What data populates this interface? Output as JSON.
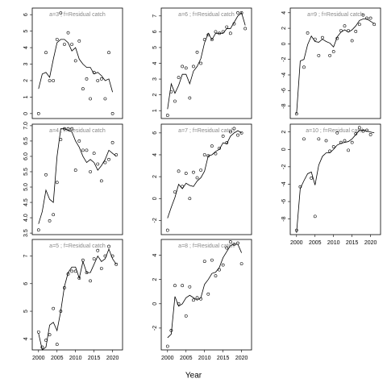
{
  "chart_data": [
    {
      "type": "scatter",
      "title": "a=3 ; f=Residual catch",
      "xlim": [
        1998.3,
        2022.7
      ],
      "ylim": [
        -0.3,
        6.4
      ],
      "yticks": [
        0,
        1,
        2,
        3,
        4,
        5,
        6
      ],
      "x": [
        2000,
        2001,
        2002,
        2003,
        2004,
        2005,
        2006,
        2007,
        2008,
        2009,
        2010,
        2011,
        2012,
        2013,
        2014,
        2015,
        2016,
        2017,
        2018,
        2019,
        2020
      ],
      "points": [
        0,
        null,
        3.7,
        2.0,
        2.0,
        4.5,
        6.1,
        4.2,
        4.9,
        4.2,
        3.2,
        4.4,
        1.5,
        2.1,
        0.9,
        2.5,
        2.0,
        2.1,
        0.9,
        3.7,
        0
      ],
      "fit": [
        1.5,
        2.4,
        2.5,
        2.2,
        3.3,
        4.3,
        4.5,
        4.5,
        4.3,
        3.8,
        4.0,
        3.3,
        3.0,
        2.8,
        2.8,
        2.4,
        2.5,
        2.3,
        2.0,
        2.1,
        1.3
      ]
    },
    {
      "type": "scatter",
      "title": "a=4 ; f=Residual catch",
      "xlim": [
        1998.3,
        2022.7
      ],
      "ylim": [
        3.45,
        7.05
      ],
      "yticks": [
        3.5,
        {
          "value": 4,
          "label": "4.0"
        },
        4.5,
        {
          "value": 5,
          "label": "5.0"
        },
        5.5,
        {
          "value": 6,
          "label": "6.0"
        },
        6.5,
        {
          "value": 7,
          "label": "7.0"
        }
      ],
      "x": [
        2000,
        2001,
        2002,
        2003,
        2004,
        2005,
        2006,
        2007,
        2008,
        2009,
        2010,
        2011,
        2012,
        2013,
        2014,
        2015,
        2016,
        2017,
        2018,
        2019,
        2020,
        2021
      ],
      "points": [
        3.6,
        null,
        5.4,
        3.9,
        4.1,
        5.15,
        6.55,
        6.9,
        6.9,
        6.9,
        5.55,
        6.5,
        6.2,
        6.2,
        5.5,
        6.1,
        5.75,
        5.2,
        5.8,
        5.9,
        6.45,
        6.05
      ],
      "fit": [
        3.8,
        4.2,
        4.9,
        4.6,
        4.5,
        6.0,
        6.9,
        6.9,
        6.85,
        6.8,
        6.5,
        6.3,
        6.0,
        5.8,
        5.9,
        5.8,
        5.55,
        5.7,
        5.9,
        6.2,
        6.1,
        6.0
      ]
    },
    {
      "type": "scatter",
      "title": "a=5 ; f=Residual catch",
      "xlim": [
        1998.3,
        2022.7
      ],
      "xticks": [
        2000,
        2005,
        2010,
        2015,
        2020
      ],
      "ylim": [
        3.6,
        7.6
      ],
      "yticks": [
        4,
        5,
        6,
        7
      ],
      "x": [
        2000,
        2001,
        2002,
        2003,
        2004,
        2005,
        2006,
        2007,
        2008,
        2009,
        2010,
        2011,
        2012,
        2013,
        2014,
        2015,
        2016,
        2017,
        2018,
        2019,
        2020,
        2021
      ],
      "points": [
        4.25,
        3.7,
        3.95,
        4.15,
        5.1,
        3.8,
        5.0,
        5.85,
        6.35,
        6.45,
        6.45,
        6.2,
        6.85,
        6.4,
        6.1,
        6.9,
        7.2,
        6.55,
        7.0,
        7.35,
        7.0,
        6.7
      ],
      "fit": [
        4.2,
        3.6,
        3.7,
        4.5,
        4.6,
        4.3,
        5.0,
        5.9,
        6.4,
        6.6,
        6.6,
        6.2,
        6.8,
        6.4,
        6.4,
        6.7,
        7.0,
        6.8,
        6.9,
        7.25,
        6.9,
        6.7
      ]
    },
    {
      "type": "scatter",
      "title": "a=6 ; f=Residual catch",
      "xlim": [
        1998.3,
        2022.7
      ],
      "ylim": [
        0.5,
        7.5
      ],
      "yticks": [
        1,
        2,
        3,
        4,
        5,
        6,
        7
      ],
      "x": [
        2000,
        2001,
        2002,
        2003,
        2004,
        2005,
        2006,
        2007,
        2008,
        2009,
        2010,
        2011,
        2012,
        2013,
        2014,
        2015,
        2016,
        2017,
        2018,
        2019,
        2020,
        2021
      ],
      "points": [
        0.7,
        2.2,
        1.6,
        3.1,
        3.8,
        3.7,
        1.8,
        3.8,
        4.7,
        4.0,
        5.5,
        5.8,
        5.5,
        6.0,
        5.9,
        6.0,
        6.3,
        5.9,
        6.5,
        7.2,
        7.2,
        6.2
      ],
      "fit": [
        1.1,
        2.7,
        2.1,
        2.6,
        3.3,
        3.3,
        2.7,
        3.5,
        3.8,
        4.3,
        5.3,
        5.9,
        5.5,
        5.9,
        5.9,
        5.9,
        6.2,
        6.2,
        6.6,
        7.0,
        7.2,
        6.4
      ]
    },
    {
      "type": "scatter",
      "title": "a=7 ; f=Residual catch",
      "xlim": [
        1998.3,
        2022.7
      ],
      "ylim": [
        -3.3,
        6.8
      ],
      "yticks": [
        -2,
        0,
        2,
        4,
        6
      ],
      "x": [
        2000,
        2001,
        2002,
        2003,
        2004,
        2005,
        2006,
        2007,
        2008,
        2009,
        2010,
        2011,
        2012,
        2013,
        2014,
        2015,
        2016,
        2017,
        2018,
        2019,
        2020
      ],
      "points": [
        -2.9,
        null,
        0.6,
        2.5,
        1.1,
        2.3,
        0.0,
        2.4,
        1.9,
        2.6,
        4.0,
        3.9,
        4.8,
        4.1,
        4.6,
        5.7,
        5.1,
        6.1,
        6.4,
        5.8,
        6.0
      ],
      "fit": [
        -1.8,
        -0.8,
        0.1,
        1.3,
        0.9,
        1.4,
        1.2,
        1.1,
        1.6,
        1.9,
        2.5,
        3.9,
        4.0,
        4.3,
        4.5,
        5.1,
        5.0,
        5.7,
        6.0,
        6.2,
        6.0
      ]
    },
    {
      "type": "scatter",
      "title": "a=8 ; f=Residual catch",
      "xlim": [
        1998.3,
        2022.7
      ],
      "xticks": [
        2000,
        2005,
        2010,
        2015,
        2020
      ],
      "xlabel": "Year",
      "ylim": [
        -3.8,
        5.3
      ],
      "yticks": [
        -2,
        0,
        2,
        4
      ],
      "x": [
        2000,
        2001,
        2002,
        2003,
        2004,
        2005,
        2006,
        2007,
        2008,
        2009,
        2010,
        2011,
        2012,
        2013,
        2014,
        2015,
        2016,
        2017,
        2018,
        2019,
        2020
      ],
      "points": [
        -3.5,
        -2.2,
        1.5,
        0.0,
        1.5,
        -1.0,
        1.4,
        0.3,
        0.5,
        0.4,
        3.5,
        0.8,
        3.6,
        2.3,
        2.8,
        3.2,
        4.6,
        5.1,
        4.9,
        5.0,
        3.3
      ],
      "fit": [
        -2.8,
        -2.5,
        0.6,
        -0.2,
        0.0,
        0.5,
        0.7,
        0.5,
        0.3,
        0.5,
        1.6,
        2.0,
        2.5,
        2.6,
        3.0,
        3.8,
        4.3,
        4.8,
        4.9,
        4.9,
        4.2
      ]
    },
    {
      "type": "scatter",
      "title": "a=9 ; f=Residual catch",
      "xlim": [
        1998.3,
        2022.7
      ],
      "ylim": [
        -9.6,
        4.6
      ],
      "yticks": [
        -8,
        -6,
        -4,
        -2,
        0,
        2,
        4
      ],
      "x": [
        2000,
        2001,
        2002,
        2003,
        2004,
        2005,
        2006,
        2007,
        2008,
        2009,
        2010,
        2011,
        2012,
        2013,
        2014,
        2015,
        2016,
        2017,
        2018,
        2019,
        2020,
        2021
      ],
      "points": [
        -9.0,
        null,
        -3.0,
        1.4,
        null,
        0.6,
        -1.5,
        0.8,
        null,
        -1.5,
        -1.0,
        0.7,
        1.7,
        2.3,
        1.7,
        0.4,
        1.6,
        2.5,
        3.7,
        3.3,
        3.3,
        2.5
      ],
      "fit": [
        -9.0,
        -2.2,
        -2.0,
        -0.1,
        1.0,
        0.3,
        0.2,
        0.6,
        0.3,
        0.1,
        -0.4,
        0.9,
        1.5,
        1.8,
        1.5,
        1.8,
        2.3,
        3.0,
        3.2,
        3.2,
        2.9,
        2.6
      ]
    },
    {
      "type": "scatter",
      "title": "a=10 ; f=Residual catch",
      "xlim": [
        1998.3,
        2022.7
      ],
      "xticks": [
        2000,
        2005,
        2010,
        2015,
        2020
      ],
      "ylim": [
        -9.8,
        2.9
      ],
      "yticks": [
        -8,
        -6,
        -4,
        -2,
        0,
        2
      ],
      "x": [
        2000,
        2001,
        2002,
        2003,
        2004,
        2005,
        2006,
        2007,
        2008,
        2009,
        2010,
        2011,
        2012,
        2013,
        2014,
        2015,
        2016,
        2017,
        2018,
        2019,
        2020,
        2021
      ],
      "points": [
        -9.3,
        -4.3,
        1.2,
        null,
        -3.3,
        -7.7,
        1.2,
        null,
        1.0,
        -0.2,
        0.3,
        1.9,
        0.8,
        1.0,
        -0.1,
        0.8,
        1.8,
        2.5,
        2.1,
        2.2,
        1.7,
        null
      ],
      "fit": [
        -9.6,
        -4.5,
        -3.6,
        -2.8,
        -2.6,
        -4.1,
        -1.8,
        -0.8,
        -0.4,
        -0.4,
        0.0,
        0.5,
        0.7,
        0.8,
        0.9,
        1.2,
        1.7,
        2.2,
        2.2,
        2.1,
        2.0,
        1.9
      ]
    }
  ]
}
